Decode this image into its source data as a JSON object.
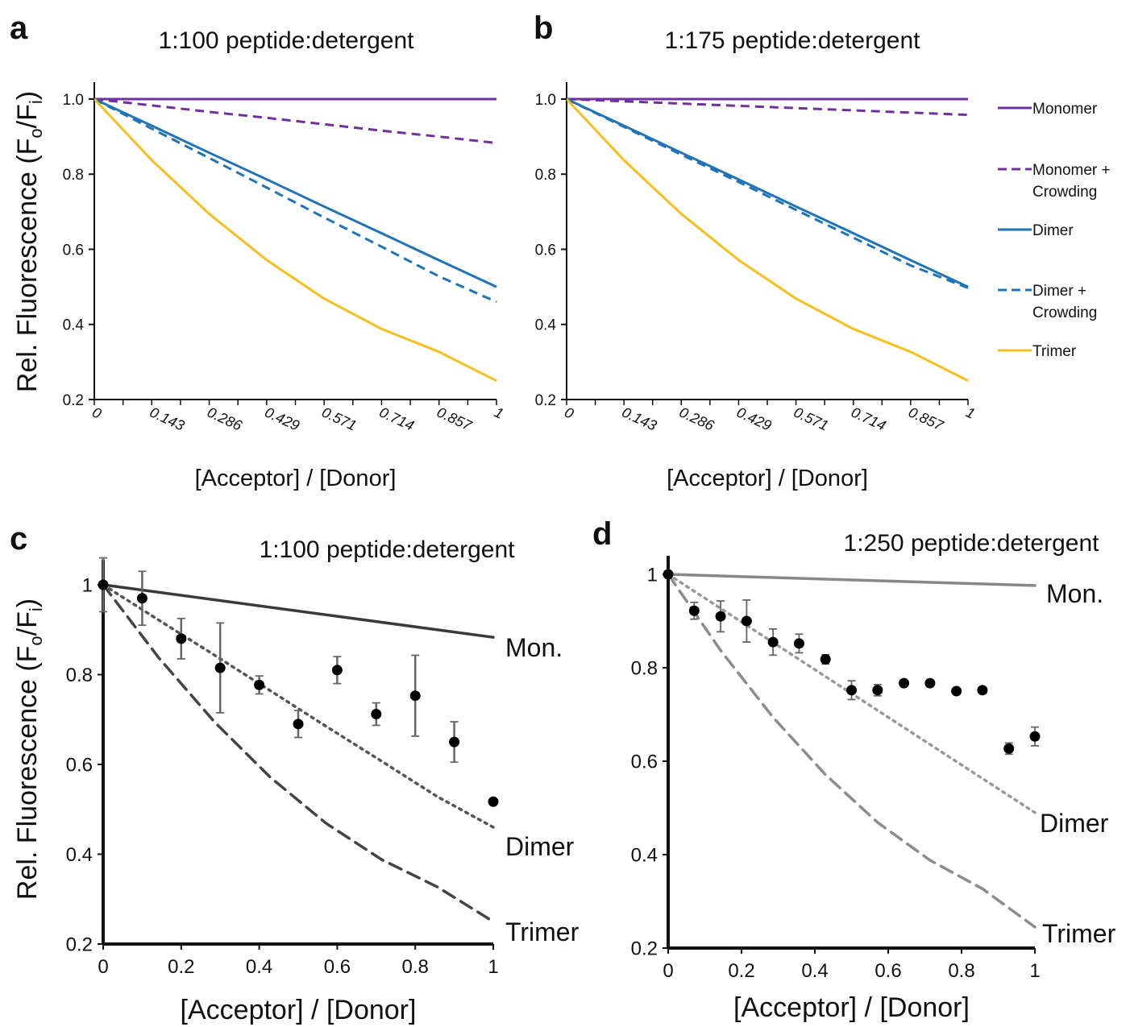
{
  "shared": {
    "ylabel_text": "Rel. Fluorescence  (F",
    "ylabel_sub1": "o",
    "ylabel_mid": "/F",
    "ylabel_sub2": "i",
    "ylabel_end": ")"
  },
  "legend": {
    "items": [
      {
        "label": "Monomer",
        "color": "#7030A0",
        "style": "solid"
      },
      {
        "label": "Monomer +",
        "label2": "Crowding",
        "color": "#7030A0",
        "style": "dashed"
      },
      {
        "label": "Dimer",
        "color": "#1F73B8",
        "style": "solid"
      },
      {
        "label": "Dimer +",
        "label2": "Crowding",
        "color": "#1F73B8",
        "style": "dashed"
      },
      {
        "label": "Trimer",
        "color": "#F7BE1C",
        "style": "solid"
      }
    ]
  },
  "chart_data": [
    {
      "panel": "a",
      "type": "line",
      "title": "1:100  peptide:detergent",
      "xlabel": "[Acceptor] / [Donor]",
      "xlim": [
        0,
        1
      ],
      "ylim": [
        0.2,
        1.05
      ],
      "xticks": [
        "0",
        "0.143",
        "0.286",
        "0.429",
        "0.571",
        "0.714",
        "0.857",
        "1"
      ],
      "yticks": [
        "0.2",
        "0.4",
        "0.6",
        "0.8",
        "1.0"
      ],
      "x": [
        0,
        0.143,
        0.286,
        0.429,
        0.571,
        0.714,
        0.857,
        1
      ],
      "series": [
        {
          "name": "Monomer",
          "color": "#7030A0",
          "style": "solid",
          "values": [
            1.0,
            1.0,
            1.0,
            1.0,
            1.0,
            1.0,
            1.0,
            1.0
          ]
        },
        {
          "name": "Monomer + Crowding",
          "color": "#7030A0",
          "style": "dashed",
          "values": [
            1.0,
            0.983,
            0.966,
            0.95,
            0.933,
            0.916,
            0.9,
            0.883
          ]
        },
        {
          "name": "Dimer",
          "color": "#1F73B8",
          "style": "solid",
          "values": [
            1.0,
            0.929,
            0.857,
            0.786,
            0.714,
            0.643,
            0.571,
            0.5
          ]
        },
        {
          "name": "Dimer + Crowding",
          "color": "#1F73B8",
          "style": "dashed",
          "values": [
            1.0,
            0.921,
            0.843,
            0.764,
            0.685,
            0.607,
            0.528,
            0.46
          ]
        },
        {
          "name": "Trimer",
          "color": "#F7BE1C",
          "style": "solid",
          "values": [
            1.0,
            0.837,
            0.694,
            0.571,
            0.469,
            0.388,
            0.327,
            0.25
          ]
        }
      ]
    },
    {
      "panel": "b",
      "type": "line",
      "title": "1:175  peptide:detergent",
      "xlabel": "[Acceptor] / [Donor]",
      "xlim": [
        0,
        1
      ],
      "ylim": [
        0.2,
        1.05
      ],
      "xticks": [
        "0",
        "0.143",
        "0.286",
        "0.429",
        "0.571",
        "0.714",
        "0.857",
        "1"
      ],
      "yticks": [
        "0.2",
        "0.4",
        "0.6",
        "0.8",
        "1.0"
      ],
      "x": [
        0,
        0.143,
        0.286,
        0.429,
        0.571,
        0.714,
        0.857,
        1
      ],
      "series": [
        {
          "name": "Monomer",
          "color": "#7030A0",
          "style": "solid",
          "values": [
            1.0,
            1.0,
            1.0,
            1.0,
            1.0,
            1.0,
            1.0,
            1.0
          ]
        },
        {
          "name": "Monomer + Crowding",
          "color": "#7030A0",
          "style": "dashed",
          "values": [
            1.0,
            0.994,
            0.988,
            0.982,
            0.976,
            0.97,
            0.964,
            0.958
          ]
        },
        {
          "name": "Dimer",
          "color": "#1F73B8",
          "style": "solid",
          "values": [
            1.0,
            0.929,
            0.857,
            0.786,
            0.714,
            0.643,
            0.571,
            0.5
          ]
        },
        {
          "name": "Dimer + Crowding",
          "color": "#1F73B8",
          "style": "dashed",
          "values": [
            1.0,
            0.926,
            0.852,
            0.779,
            0.705,
            0.631,
            0.557,
            0.497
          ]
        },
        {
          "name": "Trimer",
          "color": "#F7BE1C",
          "style": "solid",
          "values": [
            1.0,
            0.837,
            0.694,
            0.571,
            0.469,
            0.388,
            0.327,
            0.25
          ]
        }
      ]
    },
    {
      "panel": "c",
      "type": "scatter",
      "title": "1:100  peptide:detergent",
      "xlabel": "[Acceptor] / [Donor]",
      "xlim": [
        0,
        1
      ],
      "ylim": [
        0.2,
        1.05
      ],
      "xticks": [
        "0",
        "0.2",
        "0.4",
        "0.6",
        "0.8",
        "1"
      ],
      "yticks": [
        "0.2",
        "0.4",
        "0.6",
        "0.8",
        "1"
      ],
      "lines": [
        {
          "name": "Mon.",
          "color": "#3a3a3a",
          "style": "solid",
          "x": [
            0,
            1
          ],
          "y": [
            1.0,
            0.883
          ]
        },
        {
          "name": "Dimer",
          "color": "#555555",
          "style": "dotted",
          "x": [
            0,
            0.143,
            0.286,
            0.429,
            0.571,
            0.714,
            0.857,
            1
          ],
          "y": [
            1.0,
            0.921,
            0.843,
            0.764,
            0.685,
            0.607,
            0.528,
            0.46
          ]
        },
        {
          "name": "Trimer",
          "color": "#444444",
          "style": "dashed",
          "x": [
            0,
            0.143,
            0.286,
            0.429,
            0.571,
            0.714,
            0.857,
            1
          ],
          "y": [
            1.0,
            0.837,
            0.694,
            0.571,
            0.469,
            0.388,
            0.327,
            0.25
          ]
        }
      ],
      "points": {
        "x": [
          0,
          0.1,
          0.2,
          0.3,
          0.4,
          0.5,
          0.6,
          0.7,
          0.8,
          0.9,
          1.0
        ],
        "y": [
          1.0,
          0.97,
          0.88,
          0.815,
          0.777,
          0.69,
          0.81,
          0.712,
          0.753,
          0.65,
          0.517
        ],
        "err": [
          0.06,
          0.06,
          0.045,
          0.1,
          0.02,
          0.03,
          0.03,
          0.025,
          0.09,
          0.045,
          0.0
        ]
      }
    },
    {
      "panel": "d",
      "type": "scatter",
      "title": "1:250  peptide:detergent",
      "xlabel": "[Acceptor] / [Donor]",
      "xlim": [
        0,
        1
      ],
      "ylim": [
        0.2,
        1.03
      ],
      "xticks": [
        "0",
        "0.2",
        "0.4",
        "0.6",
        "0.8",
        "1"
      ],
      "yticks": [
        "0.2",
        "0.4",
        "0.6",
        "0.8",
        "1"
      ],
      "lines": [
        {
          "name": "Mon.",
          "color": "#888888",
          "style": "solid",
          "x": [
            0,
            1
          ],
          "y": [
            1.0,
            0.976
          ]
        },
        {
          "name": "Dimer",
          "color": "#999999",
          "style": "dotted",
          "x": [
            0,
            1
          ],
          "y": [
            1.0,
            0.49
          ]
        },
        {
          "name": "Trimer",
          "color": "#8c8c8c",
          "style": "dashed",
          "x": [
            0,
            0.143,
            0.286,
            0.429,
            0.571,
            0.714,
            0.857,
            1
          ],
          "y": [
            1.0,
            0.837,
            0.694,
            0.571,
            0.469,
            0.388,
            0.327,
            0.245
          ]
        }
      ],
      "points": {
        "x": [
          0,
          0.071,
          0.143,
          0.214,
          0.286,
          0.357,
          0.429,
          0.5,
          0.571,
          0.643,
          0.714,
          0.786,
          0.857,
          0.929,
          1.0
        ],
        "y": [
          1.0,
          0.922,
          0.91,
          0.9,
          0.855,
          0.852,
          0.818,
          0.752,
          0.752,
          0.767,
          0.767,
          0.75,
          0.752,
          0.627,
          0.653
        ],
        "err": [
          0.0,
          0.018,
          0.033,
          0.045,
          0.028,
          0.02,
          0.01,
          0.02,
          0.012,
          0.0,
          0.0,
          0.0,
          0.0,
          0.012,
          0.02
        ]
      }
    }
  ]
}
